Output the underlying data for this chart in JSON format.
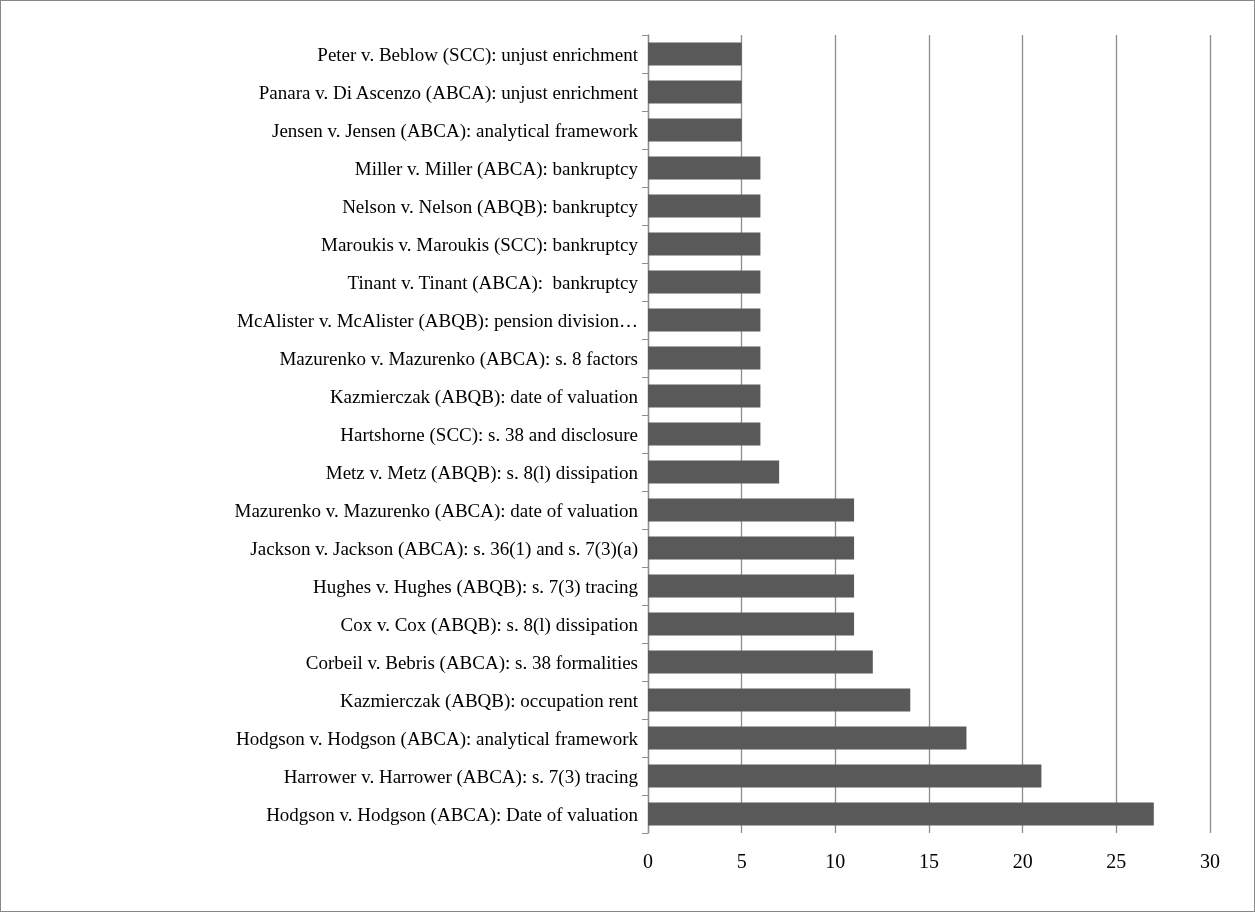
{
  "chart_data": {
    "type": "bar",
    "orientation": "horizontal",
    "categories": [
      "Peter v. Beblow (SCC): unjust enrichment",
      "Panara v. Di Ascenzo (ABCA): unjust enrichment",
      "Jensen v. Jensen (ABCA): analytical framework",
      "Miller v. Miller (ABCA): bankruptcy",
      "Nelson v. Nelson (ABQB): bankruptcy",
      "Maroukis v. Maroukis (SCC): bankruptcy",
      "Tinant v. Tinant (ABCA):  bankruptcy",
      "McAlister v. McAlister (ABQB): pension division…",
      "Mazurenko v. Mazurenko (ABCA): s. 8 factors",
      "Kazmierczak (ABQB): date of valuation",
      "Hartshorne (SCC): s. 38 and disclosure",
      "Metz v. Metz (ABQB): s. 8(l) dissipation",
      "Mazurenko v. Mazurenko (ABCA): date of valuation",
      "Jackson v. Jackson (ABCA): s. 36(1) and s. 7(3)(a)",
      "Hughes v. Hughes (ABQB): s. 7(3) tracing",
      "Cox v. Cox (ABQB): s. 8(l) dissipation",
      "Corbeil v. Bebris (ABCA): s. 38 formalities",
      "Kazmierczak (ABQB): occupation rent",
      "Hodgson v. Hodgson (ABCA): analytical framework",
      "Harrower v. Harrower (ABCA): s. 7(3) tracing",
      "Hodgson v. Hodgson (ABCA): Date of valuation"
    ],
    "values": [
      5,
      5,
      5,
      6,
      6,
      6,
      6,
      6,
      6,
      6,
      6,
      7,
      11,
      11,
      11,
      11,
      12,
      14,
      17,
      21,
      27
    ],
    "color": "#595959",
    "xlim": [
      0,
      30
    ],
    "xticks": [
      0,
      5,
      10,
      15,
      20,
      25,
      30
    ],
    "grid": "x"
  }
}
